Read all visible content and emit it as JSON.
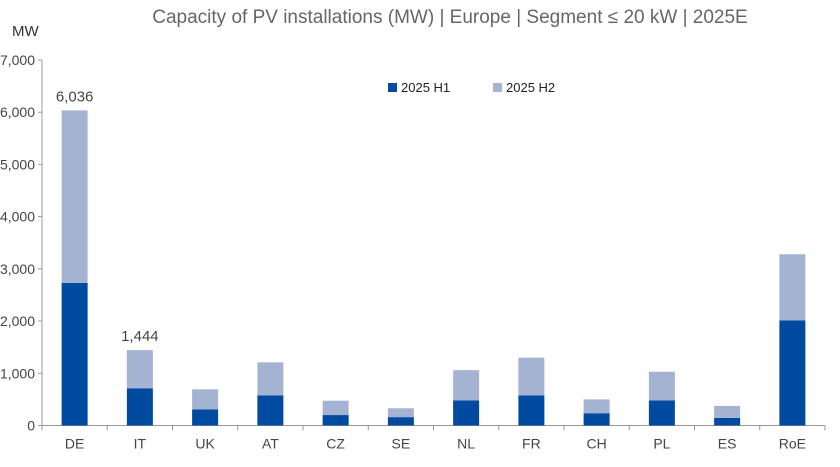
{
  "chart_data": {
    "type": "bar",
    "stacked": true,
    "title": "Capacity of PV installations (MW) | Europe | Segment ≤ 20 kW | 2025E",
    "ylabel": "MW",
    "xlabel": "",
    "ylim": [
      0,
      7000
    ],
    "yticks": [
      "0",
      "1,000",
      "2,000",
      "3,000",
      "4,000",
      "5,000",
      "6,000",
      "7,000"
    ],
    "grid": false,
    "legend_position": "top-center",
    "categories": [
      "DE",
      "IT",
      "UK",
      "AT",
      "CZ",
      "SE",
      "NL",
      "FR",
      "CH",
      "PL",
      "ES",
      "RoE"
    ],
    "series": [
      {
        "name": "2025 H1",
        "color": "#004a9f",
        "values": [
          2730,
          713,
          310,
          575,
          200,
          160,
          480,
          575,
          235,
          480,
          147,
          2015
        ]
      },
      {
        "name": "2025 H2",
        "color": "#a5b3d3",
        "values": [
          3306,
          731,
          383,
          635,
          275,
          170,
          580,
          725,
          265,
          550,
          228,
          1265
        ]
      }
    ],
    "data_labels": [
      {
        "category": "DE",
        "text": "6,036"
      },
      {
        "category": "IT",
        "text": "1,444"
      }
    ]
  }
}
